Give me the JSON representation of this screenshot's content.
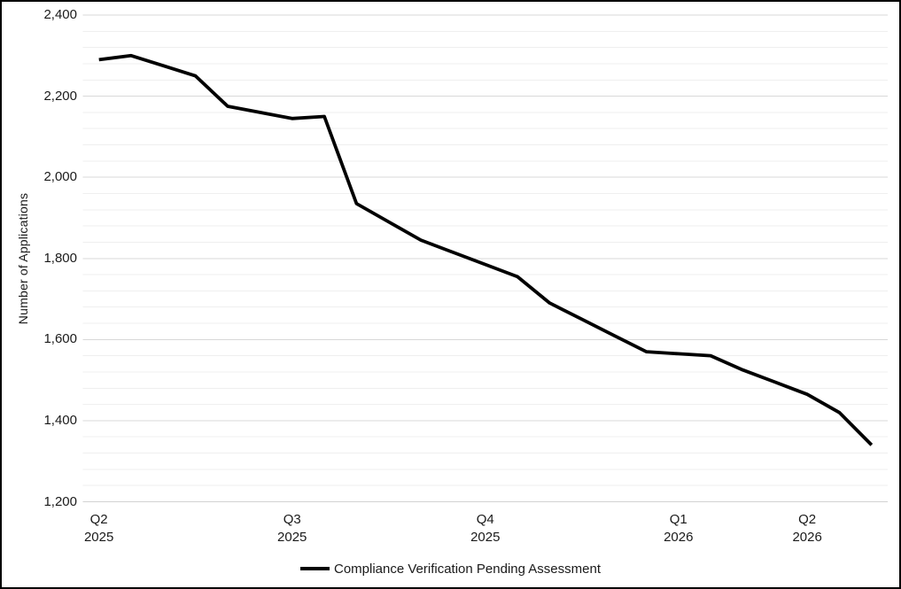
{
  "chart_data": {
    "type": "line",
    "title": "",
    "ylabel": "Number of Applications",
    "xlabel": "",
    "ylim": [
      1200,
      2400
    ],
    "y_major_unit": 200,
    "y_minor_unit": 40,
    "grid": "horizontal, major and minor, on",
    "legend_position": "bottom-center",
    "x_count": 25,
    "y_ticks": [
      {
        "value": 2400,
        "label": "2,400"
      },
      {
        "value": 2200,
        "label": "2,200"
      },
      {
        "value": 2000,
        "label": "2,000"
      },
      {
        "value": 1800,
        "label": "1,800"
      },
      {
        "value": 1600,
        "label": "1,600"
      },
      {
        "value": 1400,
        "label": "1,400"
      },
      {
        "value": 1200,
        "label": "1,200"
      }
    ],
    "x_ticks": [
      {
        "index": 0,
        "line1": "Q2",
        "line2": "2025"
      },
      {
        "index": 6,
        "line1": "Q3",
        "line2": "2025"
      },
      {
        "index": 12,
        "line1": "Q4",
        "line2": "2025"
      },
      {
        "index": 18,
        "line1": "Q1",
        "line2": "2026"
      },
      {
        "index": 22,
        "line1": "Q2",
        "line2": "2026"
      }
    ],
    "series": [
      {
        "name": "Compliance Verification Pending Assessment",
        "color": "#000000",
        "values": [
          2290,
          2300,
          2275,
          2250,
          2175,
          2160,
          2145,
          2150,
          1935,
          1890,
          1845,
          1815,
          1785,
          1755,
          1690,
          1650,
          1610,
          1570,
          1565,
          1560,
          1525,
          1495,
          1465,
          1420,
          1340
        ]
      }
    ]
  },
  "colors": {
    "background": "#ffffff",
    "border": "#000000",
    "major_gridline": "#d8d8d8",
    "minor_gridline": "#efefef",
    "axis_line": "#d2d2d2",
    "text": "#1a1a1a",
    "series_line": "#000000"
  }
}
